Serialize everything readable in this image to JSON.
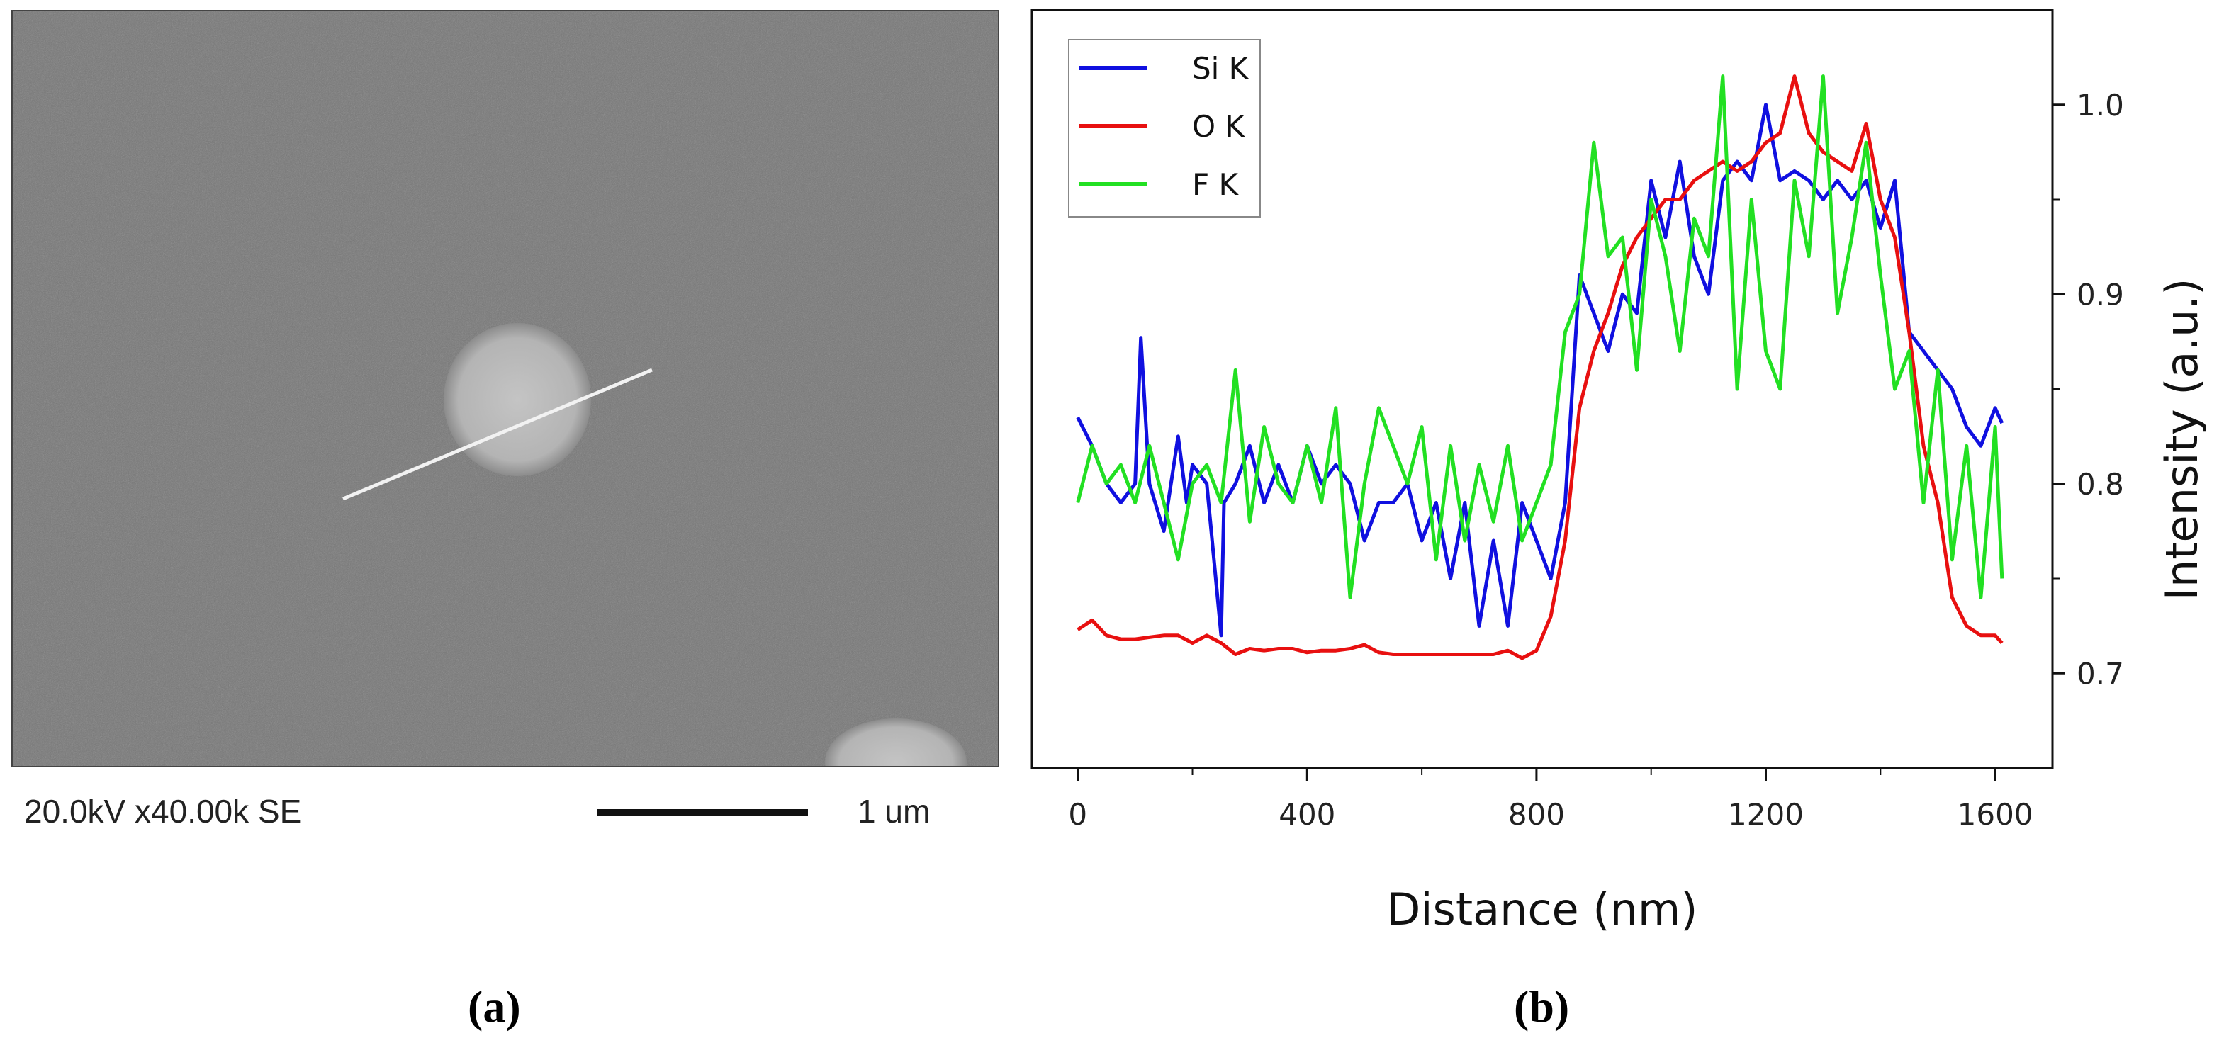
{
  "sem_image": {
    "info": "20.0kV x40.00k SE",
    "scale_label": "1 um"
  },
  "panel_labels": {
    "a": "(a)",
    "b": "(b)"
  },
  "chart_data": {
    "type": "line",
    "title": "",
    "xlabel": "Distance (nm)",
    "ylabel": "Intensity (a.u.)",
    "xlim": [
      -80,
      1700
    ],
    "ylim": [
      0.65,
      1.05
    ],
    "xticks": [
      0,
      400,
      800,
      1200,
      1600
    ],
    "yticks": [
      0.7,
      0.8,
      0.9,
      1.0
    ],
    "xtick_labels": [
      "0",
      "400",
      "800",
      "1200",
      "1600"
    ],
    "ytick_labels": [
      "0.7",
      "0.8",
      "0.9",
      "1.0"
    ],
    "y_axis_side": "right",
    "legend_position": "top-left",
    "series": [
      {
        "name": "Si K",
        "color": "#1010e0",
        "x": [
          0,
          25,
          50,
          75,
          100,
          110,
          125,
          150,
          175,
          190,
          200,
          225,
          250,
          255,
          275,
          300,
          325,
          350,
          375,
          400,
          425,
          450,
          475,
          500,
          525,
          550,
          575,
          600,
          625,
          650,
          675,
          700,
          725,
          750,
          775,
          800,
          825,
          850,
          875,
          900,
          925,
          950,
          975,
          1000,
          1025,
          1050,
          1075,
          1100,
          1125,
          1150,
          1175,
          1200,
          1225,
          1250,
          1275,
          1300,
          1325,
          1350,
          1375,
          1400,
          1425,
          1450,
          1475,
          1500,
          1525,
          1550,
          1575,
          1600,
          1612
        ],
        "values": [
          0.835,
          0.82,
          0.8,
          0.79,
          0.8,
          0.877,
          0.8,
          0.775,
          0.825,
          0.79,
          0.81,
          0.8,
          0.72,
          0.79,
          0.8,
          0.82,
          0.79,
          0.81,
          0.79,
          0.82,
          0.8,
          0.81,
          0.8,
          0.77,
          0.79,
          0.79,
          0.8,
          0.77,
          0.79,
          0.75,
          0.79,
          0.725,
          0.77,
          0.725,
          0.79,
          0.77,
          0.75,
          0.79,
          0.91,
          0.89,
          0.87,
          0.9,
          0.89,
          0.96,
          0.93,
          0.97,
          0.92,
          0.9,
          0.96,
          0.97,
          0.96,
          1.0,
          0.96,
          0.965,
          0.96,
          0.95,
          0.96,
          0.95,
          0.96,
          0.935,
          0.96,
          0.88,
          0.87,
          0.86,
          0.85,
          0.83,
          0.82,
          0.84,
          0.832
        ]
      },
      {
        "name": "O K",
        "color": "#e81010",
        "x": [
          0,
          25,
          50,
          75,
          100,
          125,
          150,
          175,
          200,
          225,
          250,
          275,
          300,
          325,
          350,
          375,
          400,
          425,
          450,
          475,
          500,
          525,
          550,
          575,
          600,
          625,
          650,
          675,
          700,
          725,
          750,
          775,
          800,
          825,
          850,
          875,
          900,
          925,
          950,
          975,
          1000,
          1025,
          1050,
          1075,
          1100,
          1125,
          1150,
          1175,
          1200,
          1225,
          1250,
          1275,
          1300,
          1325,
          1350,
          1375,
          1400,
          1425,
          1450,
          1475,
          1500,
          1525,
          1550,
          1575,
          1600,
          1612
        ],
        "values": [
          0.723,
          0.728,
          0.72,
          0.718,
          0.718,
          0.719,
          0.72,
          0.72,
          0.716,
          0.72,
          0.716,
          0.71,
          0.713,
          0.712,
          0.713,
          0.713,
          0.711,
          0.712,
          0.712,
          0.713,
          0.715,
          0.711,
          0.71,
          0.71,
          0.71,
          0.71,
          0.71,
          0.71,
          0.71,
          0.71,
          0.712,
          0.708,
          0.712,
          0.73,
          0.77,
          0.84,
          0.87,
          0.89,
          0.915,
          0.93,
          0.94,
          0.95,
          0.95,
          0.96,
          0.965,
          0.97,
          0.965,
          0.97,
          0.98,
          0.985,
          1.015,
          0.985,
          0.975,
          0.97,
          0.965,
          0.99,
          0.95,
          0.93,
          0.88,
          0.82,
          0.79,
          0.74,
          0.725,
          0.72,
          0.72,
          0.716
        ]
      },
      {
        "name": "F K",
        "color": "#22e022",
        "x": [
          0,
          25,
          50,
          75,
          100,
          125,
          150,
          175,
          200,
          225,
          250,
          275,
          300,
          325,
          350,
          375,
          400,
          425,
          450,
          475,
          500,
          525,
          550,
          575,
          600,
          625,
          650,
          675,
          700,
          725,
          750,
          775,
          800,
          825,
          850,
          875,
          900,
          925,
          950,
          975,
          1000,
          1025,
          1050,
          1075,
          1100,
          1125,
          1150,
          1175,
          1200,
          1225,
          1250,
          1275,
          1300,
          1325,
          1350,
          1375,
          1400,
          1425,
          1450,
          1475,
          1500,
          1525,
          1550,
          1575,
          1600,
          1612
        ],
        "values": [
          0.79,
          0.82,
          0.8,
          0.81,
          0.79,
          0.82,
          0.79,
          0.76,
          0.8,
          0.81,
          0.79,
          0.86,
          0.78,
          0.83,
          0.8,
          0.79,
          0.82,
          0.79,
          0.84,
          0.74,
          0.8,
          0.84,
          0.82,
          0.8,
          0.83,
          0.76,
          0.82,
          0.77,
          0.81,
          0.78,
          0.82,
          0.77,
          0.79,
          0.81,
          0.88,
          0.9,
          0.98,
          0.92,
          0.93,
          0.86,
          0.95,
          0.92,
          0.87,
          0.94,
          0.92,
          1.015,
          0.85,
          0.95,
          0.87,
          0.85,
          0.96,
          0.92,
          1.015,
          0.89,
          0.93,
          0.98,
          0.91,
          0.85,
          0.87,
          0.79,
          0.86,
          0.76,
          0.82,
          0.74,
          0.83,
          0.75
        ]
      }
    ]
  }
}
